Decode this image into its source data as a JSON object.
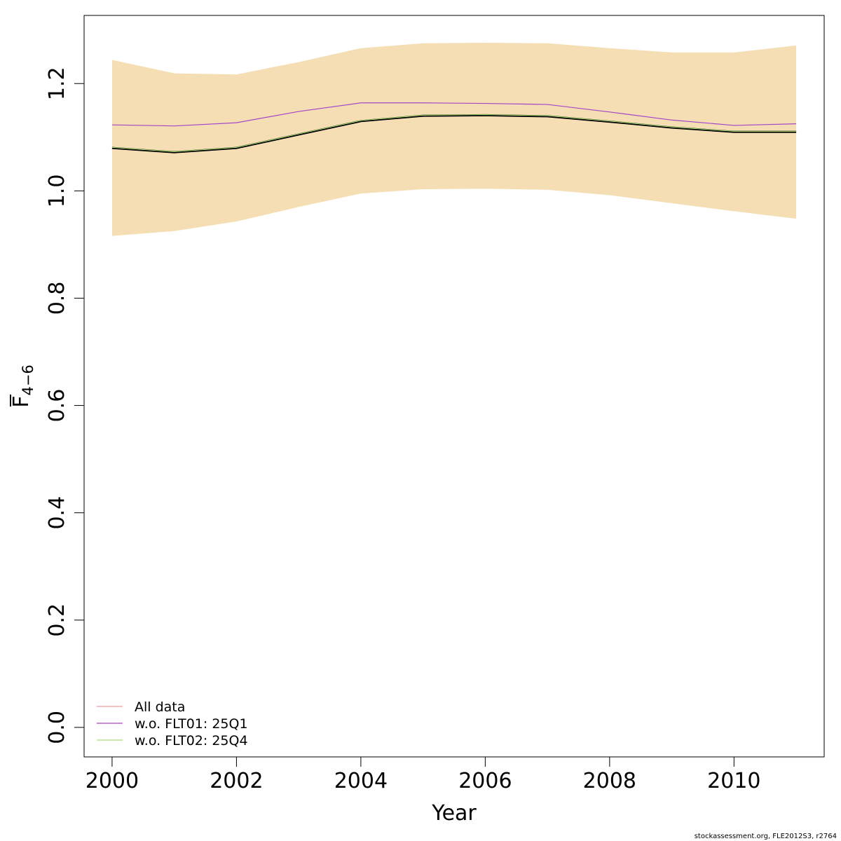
{
  "chart_data": {
    "type": "line",
    "xlabel": "Year",
    "ylabel_main": "F",
    "ylabel_sub": "4−6",
    "xlim": [
      1999.55,
      2011.45
    ],
    "ylim": [
      -0.055,
      1.327
    ],
    "x_ticks": [
      2000,
      2002,
      2004,
      2006,
      2008,
      2010
    ],
    "x_tick_labels": [
      "2000",
      "2002",
      "2004",
      "2006",
      "2008",
      "2010"
    ],
    "y_ticks": [
      0.0,
      0.2,
      0.4,
      0.6,
      0.8,
      1.0,
      1.2
    ],
    "y_tick_labels": [
      "0.0",
      "0.2",
      "0.4",
      "0.6",
      "0.8",
      "1.0",
      "1.2"
    ],
    "grid": false,
    "legend_position": "bottom-left",
    "x": [
      2000,
      2001,
      2002,
      2003,
      2004,
      2005,
      2006,
      2007,
      2008,
      2009,
      2010,
      2011
    ],
    "confidence_band": {
      "upper": [
        1.244,
        1.219,
        1.217,
        1.24,
        1.266,
        1.275,
        1.276,
        1.275,
        1.266,
        1.258,
        1.258,
        1.271
      ],
      "lower": [
        0.916,
        0.925,
        0.943,
        0.97,
        0.995,
        1.003,
        1.004,
        1.002,
        0.992,
        0.977,
        0.962,
        0.948
      ],
      "color": "#F5DEB3"
    },
    "series": [
      {
        "name": "All data",
        "color": "#E8A0A0",
        "line_color": "#000000",
        "values": [
          1.08,
          1.072,
          1.08,
          1.105,
          1.13,
          1.14,
          1.141,
          1.139,
          1.129,
          1.118,
          1.11,
          1.11
        ]
      },
      {
        "name": "w.o. FLT01: 25Q1",
        "color": "#A347C8",
        "values": [
          1.123,
          1.121,
          1.127,
          1.148,
          1.164,
          1.164,
          1.163,
          1.161,
          1.147,
          1.132,
          1.122,
          1.125
        ]
      },
      {
        "name": "w.o. FLT02: 25Q4",
        "color": "#A8E070",
        "values": [
          1.081,
          1.073,
          1.081,
          1.106,
          1.131,
          1.141,
          1.142,
          1.14,
          1.13,
          1.119,
          1.111,
          1.111
        ]
      }
    ]
  },
  "credit": "stockassessment.org, FLE2012S3, r2764"
}
